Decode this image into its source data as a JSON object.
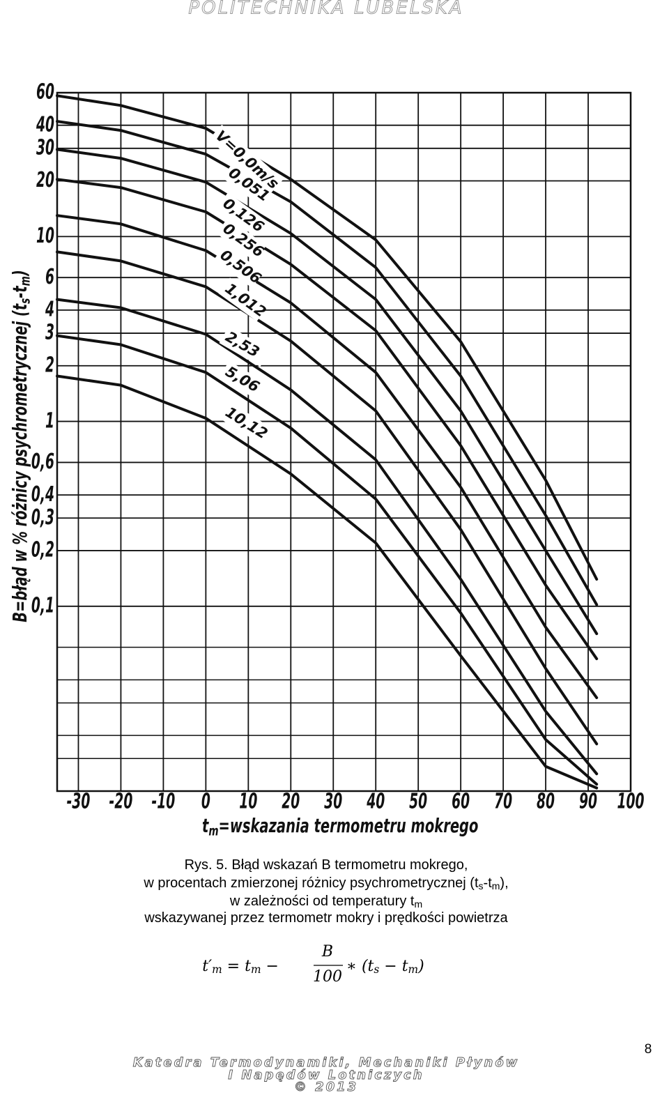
{
  "header": "POLITECHNIKA LUBELSKA",
  "chart_data": {
    "type": "line",
    "y_log": true,
    "grid": true,
    "color": "#111111",
    "xlabel": [
      "t",
      "m",
      "=wskazania termometru mokrego"
    ],
    "ylabel": [
      "B=błąd w % różnicy psychrometrycznej (t",
      "s",
      "-t",
      "m",
      ")"
    ],
    "xlim": [
      -35,
      100
    ],
    "xticks": [
      -30,
      -20,
      -10,
      0,
      10,
      20,
      30,
      40,
      50,
      60,
      70,
      80,
      90,
      100
    ],
    "ylim": [
      0.01,
      60
    ],
    "yticks": [
      60,
      40,
      30,
      20,
      10,
      6,
      4,
      3,
      2,
      1,
      {
        "value": 0.6,
        "label": "0,6"
      },
      {
        "value": 0.4,
        "label": "0,4"
      },
      {
        "value": 0.3,
        "label": "0,3"
      },
      {
        "value": 0.2,
        "label": "0,2"
      },
      {
        "value": 0.1,
        "label": "0,1"
      }
    ],
    "yminor": [
      0.06,
      0.04,
      0.03,
      0.02,
      0.015
    ],
    "x": [
      -35,
      -20,
      0,
      20,
      40,
      60,
      80,
      92
    ],
    "series": [
      {
        "name": "V=0,0m/s",
        "values": [
          57.8,
          51.2,
          38.5,
          20.4,
          9.6,
          2.7,
          0.48,
          0.14
        ]
      },
      {
        "name": "0,051",
        "values": [
          42.0,
          37.5,
          27.9,
          15.4,
          6.8,
          1.76,
          0.31,
          0.102
        ]
      },
      {
        "name": "0,126",
        "values": [
          29.6,
          26.5,
          19.7,
          10.4,
          4.57,
          1.14,
          0.2,
          0.071
        ]
      },
      {
        "name": "0,256",
        "values": [
          20.4,
          18.4,
          13.6,
          7.07,
          3.1,
          0.74,
          0.13,
          0.052
        ]
      },
      {
        "name": "0,506",
        "values": [
          13.0,
          11.7,
          8.4,
          4.38,
          1.84,
          0.44,
          0.077,
          0.032
        ]
      },
      {
        "name": "1,012",
        "values": [
          8.26,
          7.38,
          5.35,
          2.72,
          1.14,
          0.26,
          0.046,
          0.018
        ]
      },
      {
        "name": "2,53",
        "values": [
          4.57,
          4.12,
          2.96,
          1.48,
          0.62,
          0.14,
          0.027,
          0.0124
        ]
      },
      {
        "name": "5,06",
        "values": [
          2.91,
          2.6,
          1.84,
          0.92,
          0.38,
          0.092,
          0.019,
          0.0109
        ]
      },
      {
        "name": "10,12",
        "values": [
          1.76,
          1.57,
          1.04,
          0.52,
          0.22,
          0.054,
          0.0136,
          0.0104
        ]
      }
    ]
  },
  "caption": [
    [
      "Rys. 5. Błąd wskazań B termometru mokrego,"
    ],
    [
      "w procentach zmierzonej różnicy psychrometrycznej (t",
      "s",
      "-t",
      "m",
      "),"
    ],
    [
      "w zależności od temperatury t",
      "m"
    ],
    [
      "wskazywanej przez termometr mokry i prędkości powietrza"
    ]
  ],
  "formula": [
    "t′",
    "m",
    " = t",
    "m",
    " − ",
    "B",
    "100",
    "∗ (t",
    "s",
    " − t",
    "m",
    ")"
  ],
  "footer": [
    "Katedra Termodynamiki, Mechaniki Płynów",
    "I Napędów Lotniczych",
    "© 2013"
  ],
  "page_number": 8
}
